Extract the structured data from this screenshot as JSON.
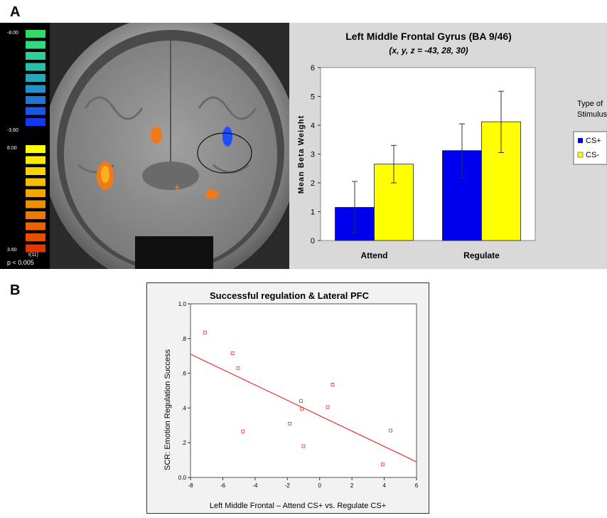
{
  "panels": {
    "a_label": "A",
    "b_label": "B"
  },
  "brain_map": {
    "neg_max": "-8.00",
    "neg_min": "-3.60",
    "pos_max": "8.00",
    "pos_min": "3.60",
    "stat_label": "t(11)",
    "p_label": "p < 0.005",
    "neg_colors": [
      "#33d966",
      "#33d980",
      "#2ecf99",
      "#2bbfa9",
      "#27a8b8",
      "#2390c8",
      "#1f74d9",
      "#1a55e6",
      "#1438f0"
    ],
    "pos_colors": [
      "#ffff00",
      "#fbe800",
      "#f8d200",
      "#f5bc00",
      "#f2a600",
      "#ef9000",
      "#ec7a00",
      "#e86400",
      "#e54e00",
      "#e23800"
    ]
  },
  "chart_data": [
    {
      "type": "bar",
      "title": "Left Middle Frontal Gyrus (BA 9/46)",
      "subtitle": "(x, y, z = -43, 28, 30)",
      "ylabel": "Mean Beta Weight",
      "xlabel": "",
      "ylim": [
        0,
        6
      ],
      "yticks": [
        "0",
        "1",
        "2",
        "3",
        "4",
        "5",
        "6"
      ],
      "categories": [
        "Attend",
        "Regulate"
      ],
      "legend_title_1": "Type of",
      "legend_title_2": "Stimulus",
      "legend_position": "right",
      "series": [
        {
          "name": "CS+",
          "color": "#0000ee",
          "values": [
            1.15,
            3.12
          ],
          "err_low": [
            0.28,
            2.18
          ],
          "err_high": [
            2.05,
            4.05
          ]
        },
        {
          "name": "CS-",
          "color": "#ffff00",
          "values": [
            2.65,
            4.12
          ],
          "err_low": [
            2.0,
            3.05
          ],
          "err_high": [
            3.3,
            5.18
          ]
        }
      ]
    },
    {
      "type": "scatter",
      "title": "Successful regulation & Lateral PFC",
      "xlabel": "Left Middle Frontal – Attend CS+ vs. Regulate CS+",
      "ylabel": "SCR: Emotion Regulation Success",
      "xlim": [
        -8,
        6
      ],
      "ylim": [
        0,
        1
      ],
      "xticks": [
        "-8",
        "-6",
        "-4",
        "-2",
        "0",
        "2",
        "4",
        "6"
      ],
      "yticks": [
        "0.0",
        ".2",
        ".4",
        ".6",
        ".8",
        "1.0"
      ],
      "point_color": "#e83030",
      "points": [
        [
          -7.1,
          0.835
        ],
        [
          -5.4,
          0.715
        ],
        [
          -5.05,
          0.63
        ],
        [
          -4.75,
          0.265
        ],
        [
          -1.85,
          0.31
        ],
        [
          -1.15,
          0.44
        ],
        [
          -1.1,
          0.395
        ],
        [
          -1.0,
          0.18
        ],
        [
          0.5,
          0.405
        ],
        [
          0.8,
          0.535
        ],
        [
          3.9,
          0.075
        ],
        [
          4.4,
          0.27
        ]
      ],
      "fit_line": [
        [
          -8,
          0.71
        ],
        [
          6,
          0.09
        ]
      ]
    }
  ]
}
